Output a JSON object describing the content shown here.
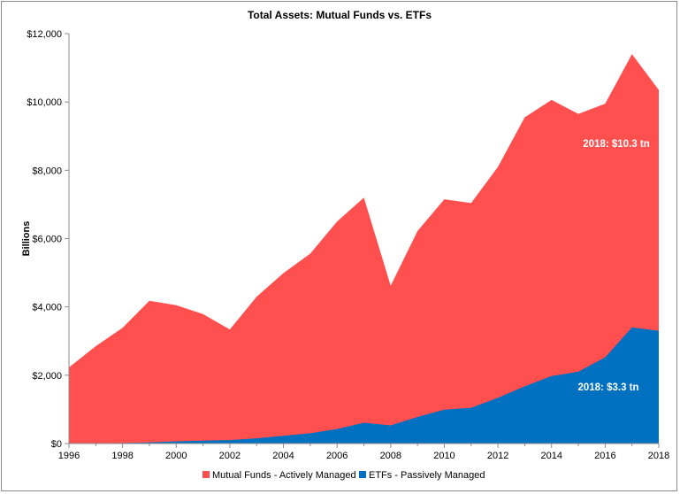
{
  "chart_data": {
    "type": "area",
    "title": "Total Assets: Mutual Funds vs. ETFs",
    "ylabel": "Billions",
    "xlabel": "",
    "stacked": true,
    "ylim": [
      0,
      12000
    ],
    "xlim": [
      1996,
      2018
    ],
    "x": [
      1996,
      1997,
      1998,
      1999,
      2000,
      2001,
      2002,
      2003,
      2004,
      2005,
      2006,
      2007,
      2008,
      2009,
      2010,
      2011,
      2012,
      2013,
      2014,
      2015,
      2016,
      2017,
      2018
    ],
    "x_ticks": [
      "1996",
      "1998",
      "2000",
      "2002",
      "2004",
      "2006",
      "2008",
      "2010",
      "2012",
      "2014",
      "2016",
      "2018"
    ],
    "y_ticks": [
      "$0",
      "$2,000",
      "$4,000",
      "$6,000",
      "$8,000",
      "$10,000",
      "$12,000"
    ],
    "series": [
      {
        "name": "Mutual Funds - Actively Managed",
        "color": "#ff4f4f",
        "total_values": [
          2230,
          2850,
          3390,
          4180,
          4050,
          3790,
          3340,
          4300,
          4990,
          5560,
          6500,
          7200,
          4620,
          6220,
          7150,
          7040,
          8100,
          9550,
          10060,
          9650,
          9950,
          11400,
          10350
        ]
      },
      {
        "name": "ETFs - Passively Managed",
        "color": "#0070c0",
        "values": [
          2,
          7,
          16,
          34,
          66,
          83,
          102,
          151,
          228,
          301,
          423,
          608,
          531,
          777,
          992,
          1048,
          1337,
          1675,
          1975,
          2101,
          2524,
          3400,
          3300
        ]
      }
    ],
    "annotations": [
      {
        "text": "2018: $10.3 tn",
        "series": "Mutual Funds - Actively Managed"
      },
      {
        "text": "2018: $3.3 tn",
        "series": "ETFs - Passively Managed"
      }
    ],
    "grid": false,
    "legend": "bottom"
  }
}
